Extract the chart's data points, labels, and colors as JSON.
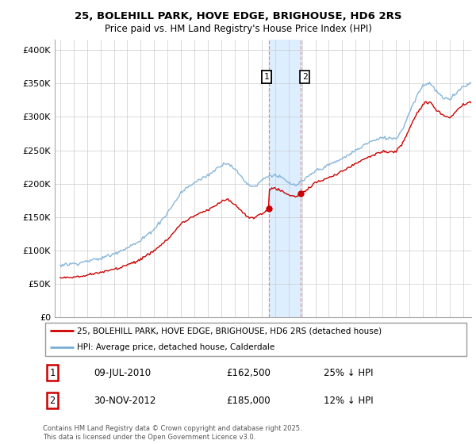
{
  "title_line1": "25, BOLEHILL PARK, HOVE EDGE, BRIGHOUSE, HD6 2RS",
  "title_line2": "Price paid vs. HM Land Registry's House Price Index (HPI)",
  "legend_label_red": "25, BOLEHILL PARK, HOVE EDGE, BRIGHOUSE, HD6 2RS (detached house)",
  "legend_label_blue": "HPI: Average price, detached house, Calderdale",
  "yticks": [
    0,
    50000,
    100000,
    150000,
    200000,
    250000,
    300000,
    350000,
    400000
  ],
  "ytick_labels": [
    "£0",
    "£50K",
    "£100K",
    "£150K",
    "£200K",
    "£250K",
    "£300K",
    "£350K",
    "£400K"
  ],
  "ylim": [
    0,
    415000
  ],
  "annotation1": {
    "num": "1",
    "date": "09-JUL-2010",
    "price": "£162,500",
    "pct": "25% ↓ HPI"
  },
  "annotation2": {
    "num": "2",
    "date": "30-NOV-2012",
    "price": "£185,000",
    "pct": "12% ↓ HPI"
  },
  "copyright_text": "Contains HM Land Registry data © Crown copyright and database right 2025.\nThis data is licensed under the Open Government Licence v3.0.",
  "highlight_xmin": 2010.53,
  "highlight_xmax": 2012.92,
  "red_color": "#cc0000",
  "blue_color": "#7aaed6",
  "highlight_color": "#ddeeff",
  "dashed_color": "#e88080",
  "xlim_min": 1994.6,
  "xlim_max": 2025.6,
  "sale1_x": 2010.53,
  "sale1_y": 162500,
  "sale2_x": 2012.92,
  "sale2_y": 185000
}
